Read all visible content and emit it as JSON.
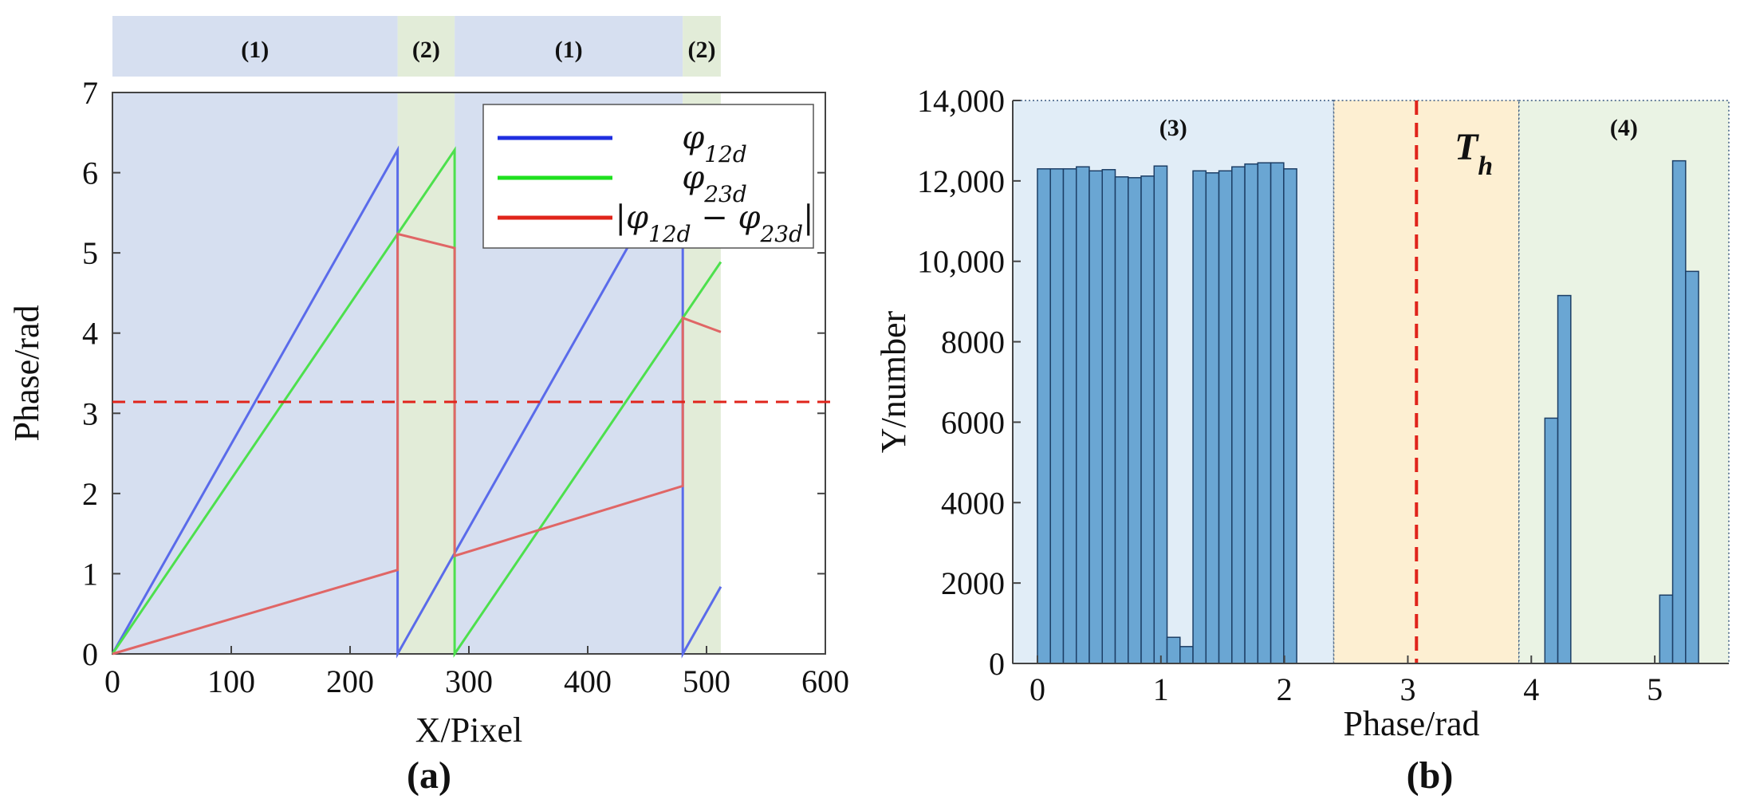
{
  "chart_data": [
    {
      "type": "line",
      "caption": "(a)",
      "xlabel": "X/Pixel",
      "ylabel": "Phase/rad",
      "xlim": [
        0,
        600
      ],
      "ylim": [
        0,
        7
      ],
      "xticks": [
        "0",
        "100",
        "200",
        "300",
        "400",
        "500",
        "600"
      ],
      "yticks": [
        "0",
        "1",
        "2",
        "3",
        "4",
        "5",
        "6",
        "7"
      ],
      "bands": [
        {
          "x": [
            0,
            240
          ],
          "label": "(1)",
          "color": "#d6dff0"
        },
        {
          "x": [
            240,
            288
          ],
          "label": "(2)",
          "color": "#e2ecd8"
        },
        {
          "x": [
            288,
            480
          ],
          "label": "(1)",
          "color": "#d6dff0"
        },
        {
          "x": [
            480,
            512
          ],
          "label": "(2)",
          "color": "#e2ecd8"
        }
      ],
      "threshold": 3.1416,
      "threshold_color": "#e0241b",
      "legend": {
        "position": "top-right",
        "entries": [
          {
            "label": "φ12d",
            "color": "#1f2fe0"
          },
          {
            "label": "φ23d",
            "color": "#1fe01f"
          },
          {
            "label": "|φ12d − φ23d|",
            "color": "#e0241b"
          }
        ]
      },
      "series": [
        {
          "name": "φ12d",
          "color": "#5a6bea",
          "x": [
            0,
            240,
            240,
            480,
            480,
            512
          ],
          "y": [
            0,
            6.2832,
            0,
            6.2832,
            0,
            0.8378
          ]
        },
        {
          "name": "φ23d",
          "color": "#4de04d",
          "x": [
            0,
            288,
            288,
            512
          ],
          "y": [
            0,
            6.2832,
            0,
            4.8869
          ]
        },
        {
          "name": "|φ12d − φ23d|",
          "color": "#e06666",
          "x": [
            0,
            240,
            240,
            288,
            288,
            480,
            480,
            512
          ],
          "y": [
            0,
            1.0472,
            5.236,
            5.0615,
            1.2217,
            2.0944,
            4.1888,
            4.0143
          ]
        }
      ]
    },
    {
      "type": "bar",
      "caption": "(b)",
      "xlabel": "Phase/rad",
      "ylabel": "Y/number",
      "xlim": [
        -0.2,
        5.6
      ],
      "ylim": [
        0,
        14000
      ],
      "xticks": [
        "0",
        "1",
        "2",
        "3",
        "4",
        "5"
      ],
      "yticks": [
        "0",
        "2000",
        "4000",
        "6000",
        "8000",
        "10,000",
        "12,000",
        "14,000"
      ],
      "regions": [
        {
          "x": [
            -0.2,
            2.4
          ],
          "label": "(3)",
          "color": "#e1edf7"
        },
        {
          "x": [
            2.4,
            3.9
          ],
          "label": "T_h",
          "color": "#fdefd2"
        },
        {
          "x": [
            3.9,
            5.6
          ],
          "label": "(4)",
          "color": "#eaf3e4"
        }
      ],
      "threshold_x": 3.07,
      "threshold_color": "#e0241b",
      "bar_color": "#6aa6d3",
      "bin_width": 0.105,
      "bins_left": [
        0.0,
        0.105,
        0.21,
        0.315,
        0.42,
        0.525,
        0.63,
        0.735,
        0.84,
        0.945,
        1.05,
        1.155,
        1.26,
        1.365,
        1.47,
        1.575,
        1.68,
        1.785,
        1.89,
        1.995,
        4.11,
        4.215,
        5.04,
        5.145,
        5.25
      ],
      "values": [
        12300,
        12300,
        12300,
        12350,
        12250,
        12280,
        12100,
        12080,
        12120,
        12370,
        650,
        420,
        12250,
        12200,
        12250,
        12350,
        12420,
        12450,
        12450,
        12300,
        6100,
        9150,
        1700,
        12500,
        9750
      ]
    }
  ]
}
